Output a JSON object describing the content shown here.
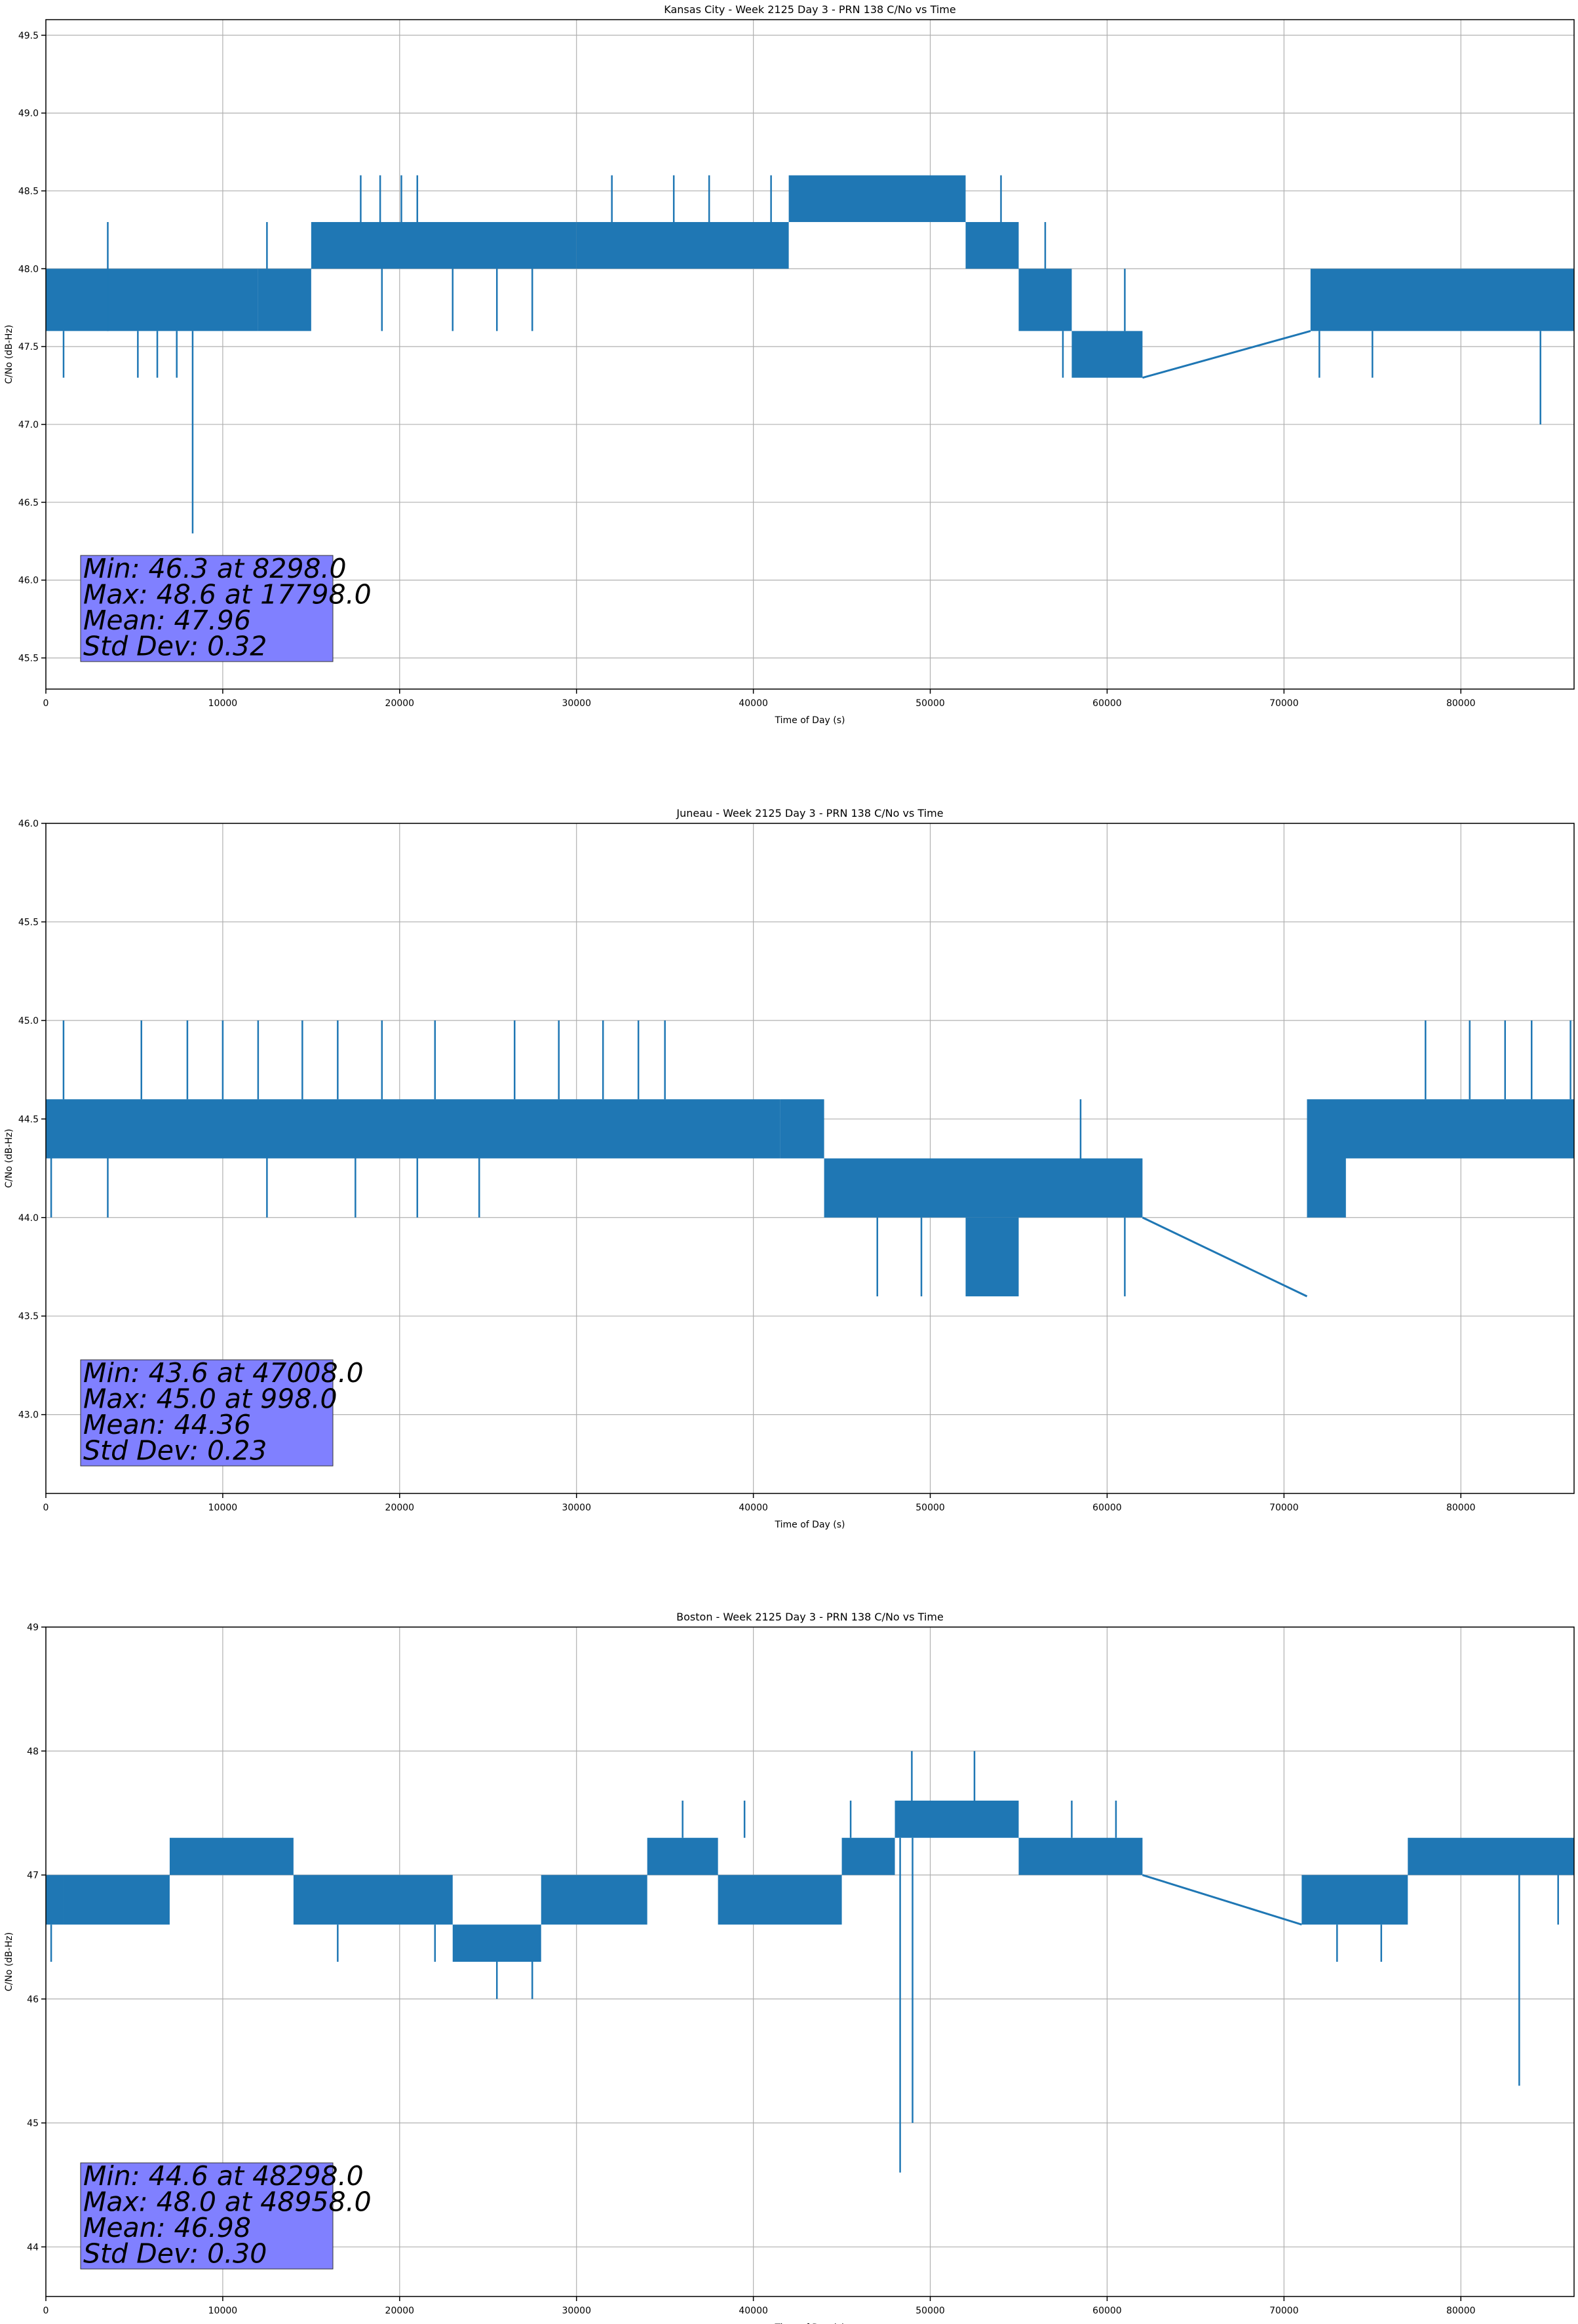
{
  "figure": {
    "line_color": "#1f77b4",
    "stats_box_color": "#8080ff",
    "grid_color": "#b0b0b0"
  },
  "chart_data": [
    {
      "type": "line",
      "title": "Kansas City - Week 2125 Day 3 - PRN 138 C/No vs Time",
      "xlabel": "Time of Day (s)",
      "ylabel": "C/No (dB-Hz)",
      "xlim": [
        0,
        86400
      ],
      "ylim": [
        45.3,
        49.6
      ],
      "xticks": [
        0,
        10000,
        20000,
        30000,
        40000,
        50000,
        60000,
        70000,
        80000
      ],
      "yticks": [
        45.5,
        46.0,
        46.5,
        47.0,
        47.5,
        48.0,
        48.5,
        49.0,
        49.5
      ],
      "ytick_format": 1,
      "grid": true,
      "stats": [
        "Min: 46.3 at 8298.0",
        "Max: 48.6 at 17798.0",
        "Mean: 47.96",
        "Std Dev: 0.32"
      ],
      "bands": [
        {
          "x0": 0,
          "x1": 12000,
          "low": 47.6,
          "high": 48.0
        },
        {
          "x0": 12000,
          "x1": 15000,
          "low": 47.6,
          "high": 48.0
        },
        {
          "x0": 15000,
          "x1": 30000,
          "low": 48.0,
          "high": 48.3
        },
        {
          "x0": 30000,
          "x1": 42000,
          "low": 48.0,
          "high": 48.3
        },
        {
          "x0": 42000,
          "x1": 52000,
          "low": 48.3,
          "high": 48.6
        },
        {
          "x0": 52000,
          "x1": 55000,
          "low": 48.0,
          "high": 48.3
        },
        {
          "x0": 55000,
          "x1": 58000,
          "low": 47.6,
          "high": 48.0
        },
        {
          "x0": 58000,
          "x1": 62000,
          "low": 47.3,
          "high": 47.6
        },
        {
          "x0": 71500,
          "x1": 86400,
          "low": 47.6,
          "high": 48.0
        }
      ],
      "points": [
        [
          62000,
          47.3
        ],
        [
          71500,
          47.6
        ]
      ],
      "spikes": [
        {
          "x": 3500,
          "y0": 47.6,
          "y1": 48.3
        },
        {
          "x": 8298,
          "y0": 47.6,
          "y1": 46.3
        },
        {
          "x": 1000,
          "y0": 47.6,
          "y1": 47.3
        },
        {
          "x": 5200,
          "y0": 47.6,
          "y1": 47.3
        },
        {
          "x": 6300,
          "y0": 47.6,
          "y1": 47.3
        },
        {
          "x": 7400,
          "y0": 47.6,
          "y1": 47.3
        },
        {
          "x": 12500,
          "y0": 48.0,
          "y1": 48.3
        },
        {
          "x": 17800,
          "y0": 48.3,
          "y1": 48.6
        },
        {
          "x": 18900,
          "y0": 48.3,
          "y1": 48.6
        },
        {
          "x": 20100,
          "y0": 48.3,
          "y1": 48.6
        },
        {
          "x": 21000,
          "y0": 48.3,
          "y1": 48.6
        },
        {
          "x": 19000,
          "y0": 48.0,
          "y1": 47.6
        },
        {
          "x": 23000,
          "y0": 48.0,
          "y1": 47.6
        },
        {
          "x": 25500,
          "y0": 48.0,
          "y1": 47.6
        },
        {
          "x": 27500,
          "y0": 48.0,
          "y1": 47.6
        },
        {
          "x": 32000,
          "y0": 48.3,
          "y1": 48.6
        },
        {
          "x": 35500,
          "y0": 48.3,
          "y1": 48.6
        },
        {
          "x": 37500,
          "y0": 48.3,
          "y1": 48.6
        },
        {
          "x": 41000,
          "y0": 48.3,
          "y1": 48.6
        },
        {
          "x": 54000,
          "y0": 48.3,
          "y1": 48.6
        },
        {
          "x": 56500,
          "y0": 48.0,
          "y1": 48.3
        },
        {
          "x": 57500,
          "y0": 47.6,
          "y1": 47.3
        },
        {
          "x": 61000,
          "y0": 47.6,
          "y1": 48.0
        },
        {
          "x": 72000,
          "y0": 47.6,
          "y1": 47.3
        },
        {
          "x": 75000,
          "y0": 47.6,
          "y1": 47.3
        },
        {
          "x": 84500,
          "y0": 47.6,
          "y1": 47.0
        }
      ]
    },
    {
      "type": "line",
      "title": "Juneau - Week 2125 Day 3 - PRN 138 C/No vs Time",
      "xlabel": "Time of Day (s)",
      "ylabel": "C/No (dB-Hz)",
      "xlim": [
        0,
        86400
      ],
      "ylim": [
        42.6,
        46.0
      ],
      "xticks": [
        0,
        10000,
        20000,
        30000,
        40000,
        50000,
        60000,
        70000,
        80000
      ],
      "yticks": [
        43.0,
        43.5,
        44.0,
        44.5,
        45.0,
        45.5,
        46.0
      ],
      "ytick_format": 1,
      "grid": true,
      "stats": [
        "Min: 43.6 at 47008.0",
        "Max: 45.0 at 998.0",
        "Mean: 44.36",
        "Std Dev: 0.23"
      ],
      "bands": [
        {
          "x0": 0,
          "x1": 41500,
          "low": 44.3,
          "high": 44.6
        },
        {
          "x0": 41500,
          "x1": 44000,
          "low": 44.3,
          "high": 44.6
        },
        {
          "x0": 44000,
          "x1": 62000,
          "low": 44.0,
          "high": 44.3
        },
        {
          "x0": 52000,
          "x1": 55000,
          "low": 43.6,
          "high": 44.0
        },
        {
          "x0": 71300,
          "x1": 86400,
          "low": 44.3,
          "high": 44.6
        },
        {
          "x0": 71300,
          "x1": 73500,
          "low": 44.0,
          "high": 44.3
        }
      ],
      "points": [
        [
          62000,
          44.0
        ],
        [
          71300,
          43.6
        ]
      ],
      "spikes": [
        {
          "x": 998,
          "y0": 44.6,
          "y1": 45.0
        },
        {
          "x": 300,
          "y0": 44.3,
          "y1": 44.0
        },
        {
          "x": 5400,
          "y0": 44.6,
          "y1": 45.0
        },
        {
          "x": 8000,
          "y0": 44.6,
          "y1": 45.0
        },
        {
          "x": 10000,
          "y0": 44.6,
          "y1": 45.0
        },
        {
          "x": 12000,
          "y0": 44.6,
          "y1": 45.0
        },
        {
          "x": 14500,
          "y0": 44.6,
          "y1": 45.0
        },
        {
          "x": 16500,
          "y0": 44.6,
          "y1": 45.0
        },
        {
          "x": 19000,
          "y0": 44.6,
          "y1": 45.0
        },
        {
          "x": 22000,
          "y0": 44.6,
          "y1": 45.0
        },
        {
          "x": 26500,
          "y0": 44.6,
          "y1": 45.0
        },
        {
          "x": 29000,
          "y0": 44.6,
          "y1": 45.0
        },
        {
          "x": 31500,
          "y0": 44.6,
          "y1": 45.0
        },
        {
          "x": 33500,
          "y0": 44.6,
          "y1": 45.0
        },
        {
          "x": 35000,
          "y0": 44.6,
          "y1": 45.0
        },
        {
          "x": 3500,
          "y0": 44.3,
          "y1": 44.0
        },
        {
          "x": 12500,
          "y0": 44.3,
          "y1": 44.0
        },
        {
          "x": 17500,
          "y0": 44.3,
          "y1": 44.0
        },
        {
          "x": 21000,
          "y0": 44.3,
          "y1": 44.0
        },
        {
          "x": 24500,
          "y0": 44.3,
          "y1": 44.0
        },
        {
          "x": 47008,
          "y0": 44.0,
          "y1": 43.6
        },
        {
          "x": 49500,
          "y0": 44.0,
          "y1": 43.6
        },
        {
          "x": 58500,
          "y0": 44.3,
          "y1": 44.6
        },
        {
          "x": 61000,
          "y0": 44.0,
          "y1": 43.6
        },
        {
          "x": 78000,
          "y0": 44.6,
          "y1": 45.0
        },
        {
          "x": 80500,
          "y0": 44.6,
          "y1": 45.0
        },
        {
          "x": 82500,
          "y0": 44.6,
          "y1": 45.0
        },
        {
          "x": 84000,
          "y0": 44.6,
          "y1": 45.0
        },
        {
          "x": 86200,
          "y0": 44.6,
          "y1": 45.0
        }
      ]
    },
    {
      "type": "line",
      "title": "Boston - Week 2125 Day 3 - PRN 138 C/No vs Time",
      "xlabel": "Time of Day (s)",
      "ylabel": "C/No (dB-Hz)",
      "xlim": [
        0,
        86400
      ],
      "ylim": [
        43.6,
        49.0
      ],
      "xticks": [
        0,
        10000,
        20000,
        30000,
        40000,
        50000,
        60000,
        70000,
        80000
      ],
      "yticks": [
        44,
        45,
        46,
        47,
        48,
        49
      ],
      "ytick_format": 0,
      "grid": true,
      "stats": [
        "Min: 44.6 at 48298.0",
        "Max: 48.0 at 48958.0",
        "Mean: 46.98",
        "Std Dev: 0.30"
      ],
      "bands": [
        {
          "x0": 0,
          "x1": 1000,
          "low": 46.6,
          "high": 47.0
        },
        {
          "x0": 1000,
          "x1": 7000,
          "low": 46.6,
          "high": 47.0
        },
        {
          "x0": 7000,
          "x1": 14000,
          "low": 47.0,
          "high": 47.3
        },
        {
          "x0": 14000,
          "x1": 23000,
          "low": 46.6,
          "high": 47.0
        },
        {
          "x0": 23000,
          "x1": 28000,
          "low": 46.3,
          "high": 46.6
        },
        {
          "x0": 28000,
          "x1": 34000,
          "low": 46.6,
          "high": 47.0
        },
        {
          "x0": 34000,
          "x1": 38000,
          "low": 47.0,
          "high": 47.3
        },
        {
          "x0": 38000,
          "x1": 45000,
          "low": 46.6,
          "high": 47.0
        },
        {
          "x0": 45000,
          "x1": 48000,
          "low": 47.0,
          "high": 47.3
        },
        {
          "x0": 48000,
          "x1": 55000,
          "low": 47.3,
          "high": 47.6
        },
        {
          "x0": 55000,
          "x1": 62000,
          "low": 47.0,
          "high": 47.3
        },
        {
          "x0": 71000,
          "x1": 77000,
          "low": 46.6,
          "high": 47.0
        },
        {
          "x0": 77000,
          "x1": 86400,
          "low": 47.0,
          "high": 47.3
        }
      ],
      "points": [
        [
          62000,
          47.0
        ],
        [
          71000,
          46.6
        ]
      ],
      "spikes": [
        {
          "x": 48298,
          "y0": 47.3,
          "y1": 44.6
        },
        {
          "x": 48958,
          "y0": 47.6,
          "y1": 48.0
        },
        {
          "x": 49000,
          "y0": 47.3,
          "y1": 45.0
        },
        {
          "x": 52500,
          "y0": 47.6,
          "y1": 48.0
        },
        {
          "x": 25500,
          "y0": 46.3,
          "y1": 46.0
        },
        {
          "x": 27500,
          "y0": 46.3,
          "y1": 46.0
        },
        {
          "x": 83300,
          "y0": 47.0,
          "y1": 45.3
        },
        {
          "x": 36000,
          "y0": 47.3,
          "y1": 47.6
        },
        {
          "x": 39500,
          "y0": 47.3,
          "y1": 47.6
        },
        {
          "x": 45500,
          "y0": 47.3,
          "y1": 47.6
        },
        {
          "x": 58000,
          "y0": 47.3,
          "y1": 47.6
        },
        {
          "x": 60500,
          "y0": 47.3,
          "y1": 47.6
        },
        {
          "x": 300,
          "y0": 46.6,
          "y1": 46.3
        },
        {
          "x": 16500,
          "y0": 46.6,
          "y1": 46.3
        },
        {
          "x": 22000,
          "y0": 46.6,
          "y1": 46.3
        },
        {
          "x": 73000,
          "y0": 46.6,
          "y1": 46.3
        },
        {
          "x": 75500,
          "y0": 46.6,
          "y1": 46.3
        },
        {
          "x": 85500,
          "y0": 47.0,
          "y1": 46.6
        }
      ]
    }
  ]
}
